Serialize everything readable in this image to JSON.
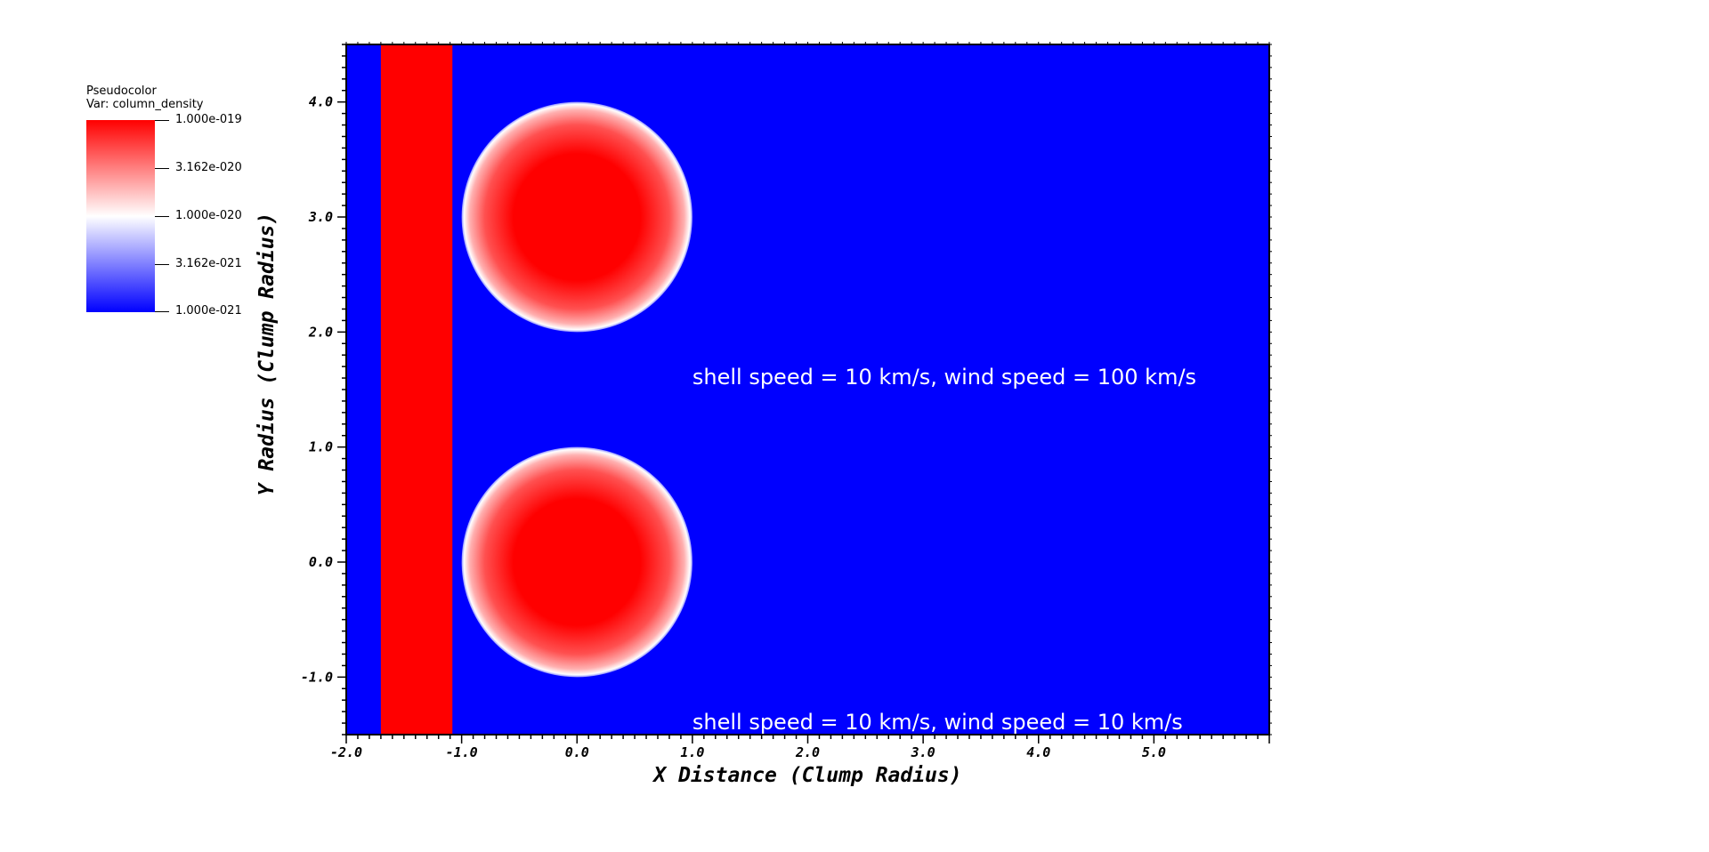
{
  "legend": {
    "title": "Pseudocolor",
    "var_label": "Var: column_density",
    "tick_labels": [
      "1.000e-019",
      "3.162e-020",
      "1.000e-020",
      "3.162e-021",
      "1.000e-021"
    ],
    "colors": {
      "max": "#ff0000",
      "mid": "#ffffff",
      "min": "#0000ff"
    }
  },
  "chart_data": {
    "type": "heatmap",
    "xlabel": "X Distance (Clump Radius)",
    "ylabel": "Y Radius (Clump Radius)",
    "xlim": [
      -2.0,
      6.0
    ],
    "ylim": [
      -1.5,
      4.5
    ],
    "x_ticks": [
      "-2.0",
      "-1.0",
      "0.0",
      "1.0",
      "2.0",
      "3.0",
      "4.0",
      "5.0"
    ],
    "y_ticks": [
      "-1.0",
      "0.0",
      "1.0",
      "2.0",
      "3.0",
      "4.0"
    ],
    "scale": "log",
    "background_value": 1e-21,
    "features": [
      {
        "kind": "band",
        "x_min": -1.7,
        "x_max": -1.08,
        "value": 1e-19
      },
      {
        "kind": "clump",
        "cx": 0.0,
        "cy": 3.0,
        "r": 1.0,
        "peak": 1e-19
      },
      {
        "kind": "clump",
        "cx": 0.0,
        "cy": 0.0,
        "r": 1.0,
        "peak": 1e-19
      }
    ],
    "annotations": [
      {
        "text": "shell speed = 10 km/s, wind speed = 100 km/s",
        "x": 1.0,
        "y": 1.6
      },
      {
        "text": "shell speed = 10 km/s, wind speed = 10 km/s",
        "x": 1.0,
        "y": -1.4
      }
    ]
  }
}
